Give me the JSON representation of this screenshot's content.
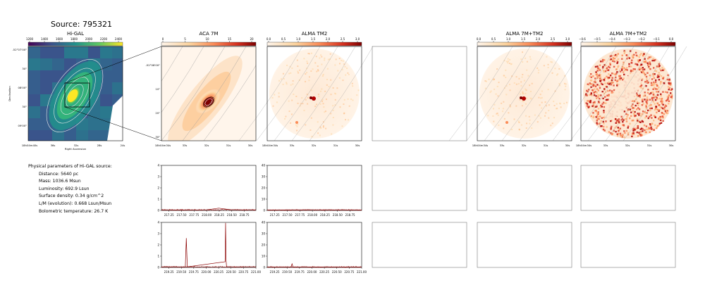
{
  "figure": {
    "source_title": "Source: 795321",
    "params_header": "Physical parameters of Hi-GAL source:",
    "params": [
      "Distance: 5640 pc",
      "Mass: 1036.6 Msun",
      "Luminosity: 692.9 Lsun",
      "Surface density: 0.34 g/cm^2",
      "L/M (evolution): 0.668 Lsun/Msun",
      "Bolometric temperature: 26.7 K"
    ]
  },
  "colors": {
    "spectrum": "#8b0000",
    "contour": "#9a9a9a",
    "frame": "#7a7a7a",
    "viridis": [
      "#440154",
      "#3b528b",
      "#21918c",
      "#5ec962",
      "#fde725"
    ],
    "orrd": [
      "#fff5eb",
      "#fdd49e",
      "#fc8d59",
      "#d7301f",
      "#7f0000"
    ]
  },
  "chart_data": [
    {
      "type": "heatmap",
      "panel": "higal",
      "title": "Hi-GAL",
      "colorbar_ticks": [
        "1200",
        "1400",
        "1600",
        "1800",
        "2000",
        "2200",
        "2400"
      ],
      "xlabel": "Right Ascension",
      "ylabel": "Declination",
      "xticks": [
        "18h04m40s",
        "36s",
        "32s",
        "28s",
        "24s"
      ],
      "yticks": [
        "-52°07'00\"",
        "30\"",
        "08'00\"",
        "30\"",
        "09'00\""
      ],
      "colormap": "viridis"
    },
    {
      "type": "heatmap",
      "panel": "aca",
      "title": "ACA 7M",
      "colorbar_ticks": [
        "0",
        "5",
        "10",
        "15",
        "20"
      ],
      "xticks": [
        "18h04m34s",
        "33s",
        "32s",
        "31s",
        "30s"
      ],
      "yticks": [
        "-52°08'00\"",
        "10\"",
        "20\"",
        "30\""
      ],
      "colormap": "OrRd"
    },
    {
      "type": "heatmap",
      "panel": "alma_tm2",
      "title": "ALMA TM2",
      "colorbar_ticks": [
        "0.0",
        "0.5",
        "1.0",
        "1.5",
        "2.0",
        "2.5",
        "3.0"
      ],
      "xticks": [
        "18h04m34s",
        "33s",
        "32s",
        "31s",
        "30s"
      ],
      "colormap": "OrRd"
    },
    {
      "type": "heatmap",
      "panel": "alma_7m_tm2",
      "title": "ALMA 7M+TM2",
      "colorbar_ticks": [
        "0.0",
        "0.5",
        "1.0",
        "1.5",
        "2.0",
        "2.5",
        "3.0"
      ],
      "xticks": [
        "18h04m34s",
        "33s",
        "32s",
        "31s",
        "30s"
      ],
      "colormap": "OrRd"
    },
    {
      "type": "heatmap",
      "panel": "alma_7m_tm2_residual",
      "title": "ALMA 7M+TM2",
      "colorbar_ticks": [
        "−0.6",
        "−0.5",
        "−0.4",
        "−0.3",
        "−0.2",
        "−0.1",
        "0.0"
      ],
      "xticks": [
        "18h04m34s",
        "33s",
        "32s",
        "31s",
        "30s"
      ],
      "colormap": "OrRd"
    },
    {
      "type": "line",
      "panel": "spec_aca_1",
      "xlim": [
        217.1,
        218.98
      ],
      "ylim": [
        0,
        4
      ],
      "xticks": [
        "217.25",
        "217.50",
        "217.75",
        "218.00",
        "218.25",
        "218.50",
        "218.75"
      ],
      "yticks": [
        "0",
        "1",
        "2",
        "3",
        "4"
      ],
      "x": [
        217.1,
        217.5,
        218.0,
        218.24,
        218.5,
        218.98
      ],
      "y": [
        0.05,
        0.04,
        0.05,
        0.2,
        0.05,
        0.05
      ]
    },
    {
      "type": "line",
      "panel": "spec_tm2_1",
      "xlim": [
        217.1,
        218.98
      ],
      "ylim": [
        0,
        40
      ],
      "xticks": [
        "217.25",
        "217.50",
        "217.75",
        "218.00",
        "218.25",
        "218.50",
        "218.75"
      ],
      "yticks": [
        "0",
        "10",
        "20",
        "30",
        "40"
      ],
      "x": [
        217.1,
        218.0,
        218.98
      ],
      "y": [
        0.4,
        0.5,
        0.4
      ]
    },
    {
      "type": "line",
      "panel": "spec_aca_2",
      "xlim": [
        219.1,
        221.0
      ],
      "ylim": [
        0,
        4
      ],
      "xticks": [
        "219.25",
        "219.50",
        "219.75",
        "220.00",
        "220.25",
        "220.50",
        "220.75",
        "221.00"
      ],
      "yticks": [
        "0",
        "1",
        "2",
        "3",
        "4"
      ],
      "x": [
        219.1,
        219.58,
        219.6,
        219.62,
        220.38,
        220.39,
        220.4,
        220.41,
        221.0
      ],
      "y": [
        0.05,
        0.05,
        2.6,
        0.05,
        0.5,
        3.95,
        0.6,
        0.05,
        0.05
      ]
    },
    {
      "type": "line",
      "panel": "spec_tm2_2",
      "xlim": [
        219.1,
        221.0
      ],
      "ylim": [
        0,
        40
      ],
      "xticks": [
        "219.25",
        "219.50",
        "219.75",
        "220.00",
        "220.25",
        "220.50",
        "220.75",
        "221.00"
      ],
      "yticks": [
        "0",
        "10",
        "20",
        "30",
        "40"
      ],
      "x": [
        219.1,
        219.58,
        219.6,
        219.62,
        221.0
      ],
      "y": [
        0.4,
        0.4,
        3.2,
        0.4,
        0.4
      ]
    }
  ]
}
